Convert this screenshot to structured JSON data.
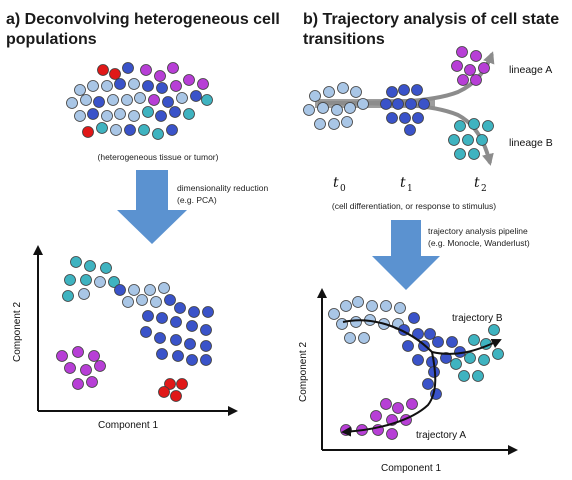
{
  "panel_a": {
    "title_line1": "a) Deconvolving heterogeneous cell",
    "title_line2": "populations",
    "tissue_caption": "(heterogeneous tissue or tumor)",
    "arrow_caption_line1": "dimensionality reduction",
    "arrow_caption_line2": "(e.g. PCA)",
    "x_axis_label": "Component 1",
    "y_axis_label": "Component 2"
  },
  "panel_b": {
    "title_line1": "b) Trajectory analysis of cell state",
    "title_line2": "transitions",
    "lineage_a": "lineage A",
    "lineage_b": "lineage B",
    "t0_base": "t",
    "t0_sub": "0",
    "t1_base": "t",
    "t1_sub": "1",
    "t2_base": "t",
    "t2_sub": "2",
    "process_caption": "(cell differentiation, or response to stimulus)",
    "arrow_caption_line1": "trajectory analysis pipeline",
    "arrow_caption_line2": "(e.g. Monocle, Wanderlust)",
    "trajectory_b": "trajectory B",
    "trajectory_a": "trajectory A",
    "x_axis_label": "Component 1",
    "y_axis_label": "Component 2"
  },
  "colors": {
    "light_blue": "#a9c6e6",
    "dark_blue": "#3a53c9",
    "teal": "#3fb3c0",
    "purple": "#b73fd6",
    "red": "#e01818",
    "big_arrow": "#5b92d0",
    "gray_arrow": "#8c8c8c"
  }
}
